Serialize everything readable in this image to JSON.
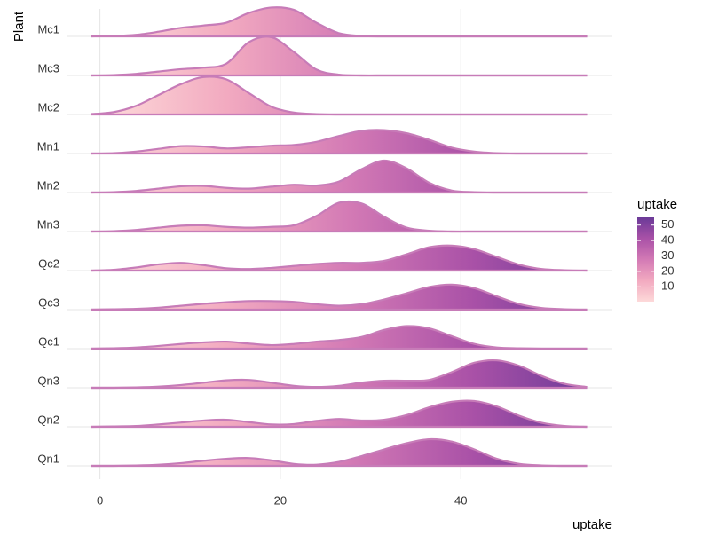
{
  "chart_data": {
    "type": "ridgeline",
    "x_label": "uptake",
    "y_label": "Plant",
    "x": [
      -1,
      1.5,
      4,
      6.5,
      9,
      11.5,
      14,
      16.5,
      19,
      21.5,
      24,
      26.5,
      29,
      31.5,
      34,
      36.5,
      39,
      41.5,
      44,
      46.5,
      49,
      51.5,
      54
    ],
    "xlim": [
      -3.7,
      56.8
    ],
    "xticks": [
      0,
      20,
      40
    ],
    "grid": true,
    "series": [
      {
        "name": "Mc1",
        "values": [
          0,
          0.01,
          0.04,
          0.12,
          0.22,
          0.28,
          0.35,
          0.6,
          0.74,
          0.68,
          0.35,
          0.08,
          0.01,
          0,
          0,
          0,
          0,
          0,
          0,
          0,
          0,
          0,
          0
        ]
      },
      {
        "name": "Mc3",
        "values": [
          0,
          0.01,
          0.04,
          0.1,
          0.16,
          0.2,
          0.3,
          0.85,
          0.98,
          0.6,
          0.15,
          0.02,
          0,
          0,
          0,
          0,
          0,
          0,
          0,
          0,
          0,
          0,
          0
        ]
      },
      {
        "name": "Mc2",
        "values": [
          0.01,
          0.06,
          0.22,
          0.5,
          0.78,
          0.96,
          0.9,
          0.55,
          0.2,
          0.05,
          0.01,
          0,
          0,
          0,
          0,
          0,
          0,
          0,
          0,
          0,
          0,
          0,
          0
        ]
      },
      {
        "name": "Mn1",
        "values": [
          0,
          0.01,
          0.05,
          0.12,
          0.19,
          0.18,
          0.13,
          0.16,
          0.2,
          0.22,
          0.3,
          0.45,
          0.58,
          0.6,
          0.52,
          0.35,
          0.15,
          0.05,
          0.01,
          0,
          0,
          0,
          0
        ]
      },
      {
        "name": "Mn2",
        "values": [
          0,
          0.01,
          0.04,
          0.1,
          0.16,
          0.17,
          0.12,
          0.1,
          0.15,
          0.2,
          0.18,
          0.28,
          0.6,
          0.82,
          0.62,
          0.25,
          0.05,
          0.01,
          0,
          0,
          0,
          0,
          0
        ]
      },
      {
        "name": "Mn3",
        "values": [
          0,
          0.01,
          0.04,
          0.1,
          0.15,
          0.16,
          0.12,
          0.1,
          0.12,
          0.16,
          0.4,
          0.74,
          0.72,
          0.38,
          0.1,
          0.02,
          0,
          0,
          0,
          0,
          0,
          0,
          0
        ]
      },
      {
        "name": "Qc2",
        "values": [
          0,
          0.02,
          0.08,
          0.16,
          0.2,
          0.14,
          0.06,
          0.04,
          0.07,
          0.12,
          0.17,
          0.2,
          0.2,
          0.25,
          0.42,
          0.6,
          0.64,
          0.55,
          0.35,
          0.15,
          0.04,
          0.01,
          0
        ]
      },
      {
        "name": "Qc3",
        "values": [
          0,
          0.01,
          0.02,
          0.05,
          0.1,
          0.15,
          0.19,
          0.22,
          0.22,
          0.2,
          0.14,
          0.1,
          0.14,
          0.26,
          0.42,
          0.58,
          0.64,
          0.55,
          0.34,
          0.14,
          0.04,
          0.01,
          0
        ]
      },
      {
        "name": "Qc1",
        "values": [
          0,
          0.01,
          0.03,
          0.07,
          0.12,
          0.16,
          0.18,
          0.13,
          0.09,
          0.12,
          0.18,
          0.22,
          0.3,
          0.48,
          0.58,
          0.52,
          0.32,
          0.12,
          0.03,
          0.01,
          0,
          0,
          0
        ]
      },
      {
        "name": "Qn3",
        "values": [
          0,
          0,
          0.01,
          0.03,
          0.07,
          0.13,
          0.19,
          0.2,
          0.13,
          0.05,
          0.02,
          0.05,
          0.13,
          0.18,
          0.18,
          0.2,
          0.4,
          0.64,
          0.7,
          0.56,
          0.3,
          0.1,
          0.02
        ]
      },
      {
        "name": "Qn2",
        "values": [
          0,
          0.01,
          0.02,
          0.06,
          0.11,
          0.16,
          0.18,
          0.12,
          0.06,
          0.07,
          0.15,
          0.2,
          0.16,
          0.18,
          0.3,
          0.5,
          0.64,
          0.66,
          0.52,
          0.28,
          0.1,
          0.02,
          0
        ]
      },
      {
        "name": "Qn1",
        "values": [
          0,
          0,
          0.01,
          0.03,
          0.07,
          0.13,
          0.18,
          0.2,
          0.14,
          0.05,
          0.03,
          0.1,
          0.25,
          0.42,
          0.58,
          0.68,
          0.62,
          0.42,
          0.18,
          0.05,
          0.01,
          0,
          0
        ]
      }
    ],
    "line_color": "#c77cb8",
    "color_scale": {
      "title": "uptake",
      "lim": [
        0.4,
        55
      ],
      "ticks": [
        10,
        20,
        30,
        40,
        50
      ],
      "colors": [
        "#fdd9d9",
        "#f2aac0",
        "#d37ab5",
        "#a951a7",
        "#6b3a98"
      ]
    }
  }
}
